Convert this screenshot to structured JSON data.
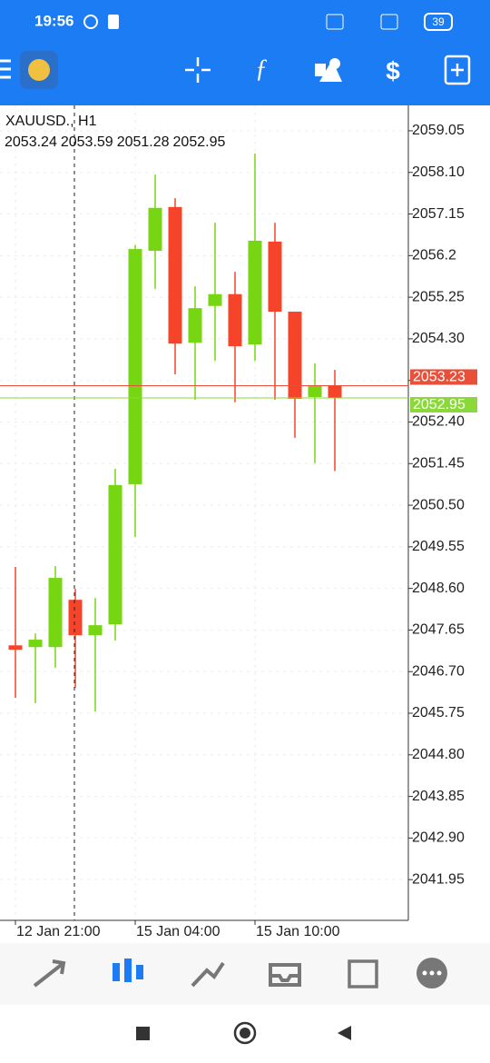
{
  "status_bar": {
    "time": "19:56",
    "battery": "39"
  },
  "chart_data": {
    "type": "candlestick",
    "symbol": "XAUUSD., H1",
    "categories": [
      "12 Jan 21:00",
      null,
      null,
      null,
      null,
      null,
      "15 Jan 04:00",
      null,
      null,
      null,
      null,
      null,
      "15 Jan 10:00",
      null,
      null,
      null,
      null
    ],
    "open": [
      2047.3,
      2047.26,
      2047.26,
      2048.34,
      2047.53,
      2047.78,
      2050.98,
      2056.31,
      2057.31,
      2054.21,
      2055.05,
      2055.32,
      2054.17,
      2056.52,
      2054.92,
      2052.97,
      2053.24
    ],
    "high": [
      2049.09,
      2047.57,
      2049.11,
      2048.59,
      2048.38,
      2051.33,
      2056.44,
      2058.05,
      2057.51,
      2055.5,
      2056.95,
      2055.83,
      2058.53,
      2056.95,
      2054.92,
      2053.74,
      2053.59
    ],
    "low": [
      2046.1,
      2045.98,
      2046.79,
      2046.33,
      2045.79,
      2047.41,
      2049.77,
      2055.44,
      2053.49,
      2052.91,
      2053.8,
      2052.85,
      2053.8,
      2052.91,
      2052.04,
      2051.46,
      2051.28
    ],
    "close": [
      2047.2,
      2047.43,
      2048.84,
      2047.53,
      2047.76,
      2050.96,
      2056.35,
      2057.29,
      2054.19,
      2055.0,
      2055.32,
      2054.13,
      2056.54,
      2054.92,
      2052.93,
      2053.24,
      2052.95
    ],
    "up_color": "#76d612",
    "down_color": "#f5442a",
    "bid": 2052.95,
    "ask": 2053.23,
    "bid_color": "#8ad83a",
    "ask_color": "#e8503a",
    "ylim": [
      2041.02,
      2059.63
    ],
    "yticks": [
      2059.05,
      {
        "value": 2058.1,
        "label": "2058.10"
      },
      2057.15,
      2056.2,
      2055.25,
      {
        "value": 2054.3,
        "label": "2054.30"
      },
      2053.35,
      {
        "value": 2052.4,
        "label": "2052.40"
      },
      2051.45,
      {
        "value": 2050.5,
        "label": "2050.50"
      },
      2049.55,
      {
        "value": 2048.6,
        "label": "2048.60"
      },
      2047.65,
      {
        "value": 2046.7,
        "label": "2046.70"
      },
      2045.75,
      {
        "value": 2044.8,
        "label": "2044.80"
      },
      2043.85,
      {
        "value": 2042.9,
        "label": "2042.90"
      },
      2041.95
    ],
    "grid": true
  }
}
